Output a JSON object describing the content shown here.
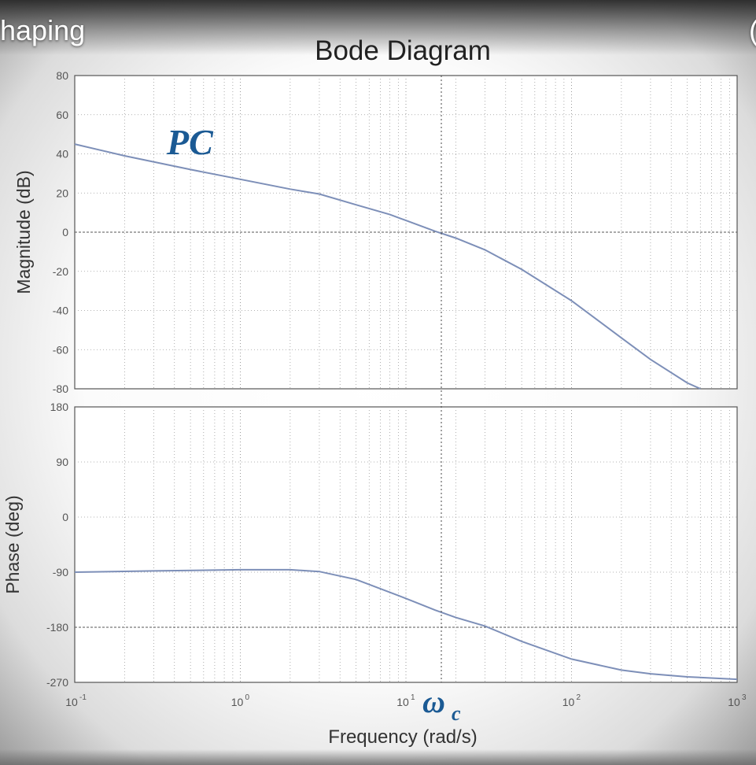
{
  "video_overlay": {
    "title_fragment": "haping",
    "right_fragment": "("
  },
  "annotations": {
    "pc_label": "PC",
    "omega_label": "ω",
    "omega_sub": "c"
  },
  "colors": {
    "curve": "#7d8fb8",
    "annotation": "#1b5a94",
    "axis_text": "#333333"
  },
  "chart_data": {
    "type": "line",
    "title": "Bode Diagram",
    "xlabel": "Frequency  (rad/s)",
    "xscale": "log",
    "xlim": [
      0.1,
      1000
    ],
    "x_tick_bases": [
      "10",
      "10",
      "10",
      "10",
      "10"
    ],
    "x_tick_exponents": [
      "-1",
      "0",
      "1",
      "2",
      "3"
    ],
    "grid": true,
    "panels": [
      {
        "name": "magnitude",
        "ylabel": "Magnitude (dB)",
        "ylim": [
          -80,
          80
        ],
        "yticks": [
          "80",
          "60",
          "40",
          "20",
          "0",
          "-20",
          "-40",
          "-60",
          "-80"
        ],
        "x": [
          0.1,
          0.2,
          0.5,
          1,
          2,
          3,
          5,
          8,
          10,
          15,
          20,
          30,
          50,
          100,
          200,
          300,
          500,
          600
        ],
        "y": [
          45,
          39,
          32,
          27,
          22,
          19.5,
          14,
          9,
          6,
          0.5,
          -3,
          -9,
          -19,
          -35,
          -54,
          -65,
          -77,
          -80
        ]
      },
      {
        "name": "phase",
        "ylabel": "Phase (deg)",
        "ylim": [
          -270,
          180
        ],
        "yticks": [
          "180",
          "90",
          "0",
          "-90",
          "-180",
          "-270"
        ],
        "x": [
          0.1,
          0.3,
          1,
          2,
          3,
          5,
          10,
          15,
          20,
          30,
          50,
          100,
          200,
          300,
          500,
          1000
        ],
        "y": [
          -90,
          -88,
          -86,
          -86,
          -89,
          -102,
          -133,
          -152,
          -164,
          -178,
          -203,
          -232,
          -250,
          -256,
          -261,
          -265
        ]
      }
    ]
  }
}
